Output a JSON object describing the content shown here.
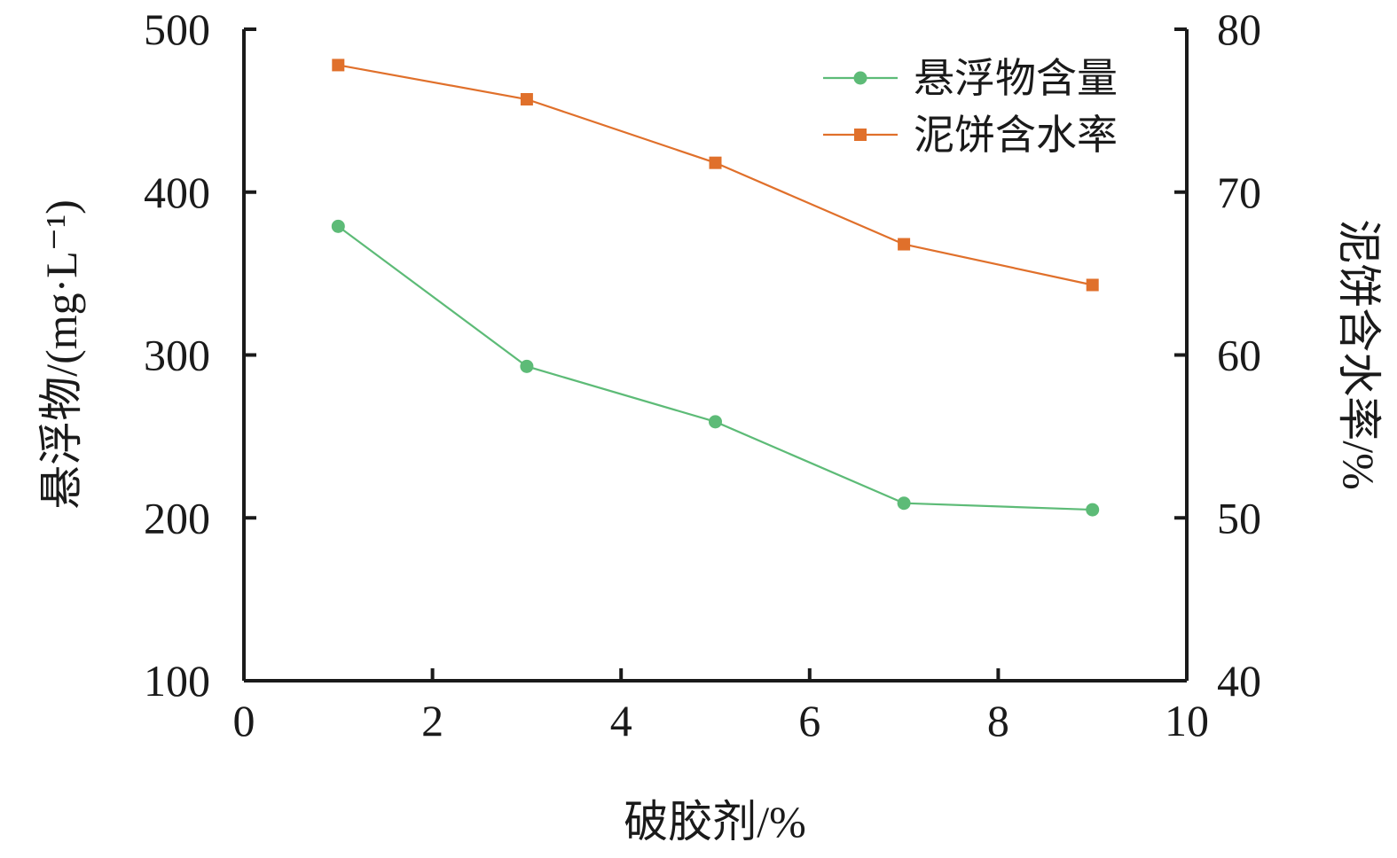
{
  "chart_data": {
    "type": "line",
    "x": [
      1,
      3,
      5,
      7,
      9
    ],
    "xlabel": "破胶剂/%",
    "xlim": [
      0,
      10
    ],
    "xticks": [
      "0",
      "2",
      "4",
      "6",
      "8",
      "10"
    ],
    "ylabel_left": "悬浮物/(mg·L⁻¹)",
    "ylim_left": [
      100,
      500
    ],
    "yticks_left": [
      "100",
      "200",
      "300",
      "400",
      "500"
    ],
    "ylabel_right": "泥饼含水率/%",
    "ylim_right": [
      40,
      80
    ],
    "yticks_right": [
      "40",
      "50",
      "60",
      "70",
      "80"
    ],
    "legend_position": "top-right",
    "grid": false,
    "series": [
      {
        "name": "悬浮物含量",
        "axis": "left",
        "marker": "circle",
        "color": "#5dbb77",
        "values": [
          379,
          293,
          259,
          209,
          205
        ]
      },
      {
        "name": "泥饼含水率",
        "axis": "right",
        "marker": "square",
        "color": "#e0702b",
        "values": [
          77.8,
          75.7,
          71.8,
          66.8,
          64.3
        ]
      }
    ]
  }
}
